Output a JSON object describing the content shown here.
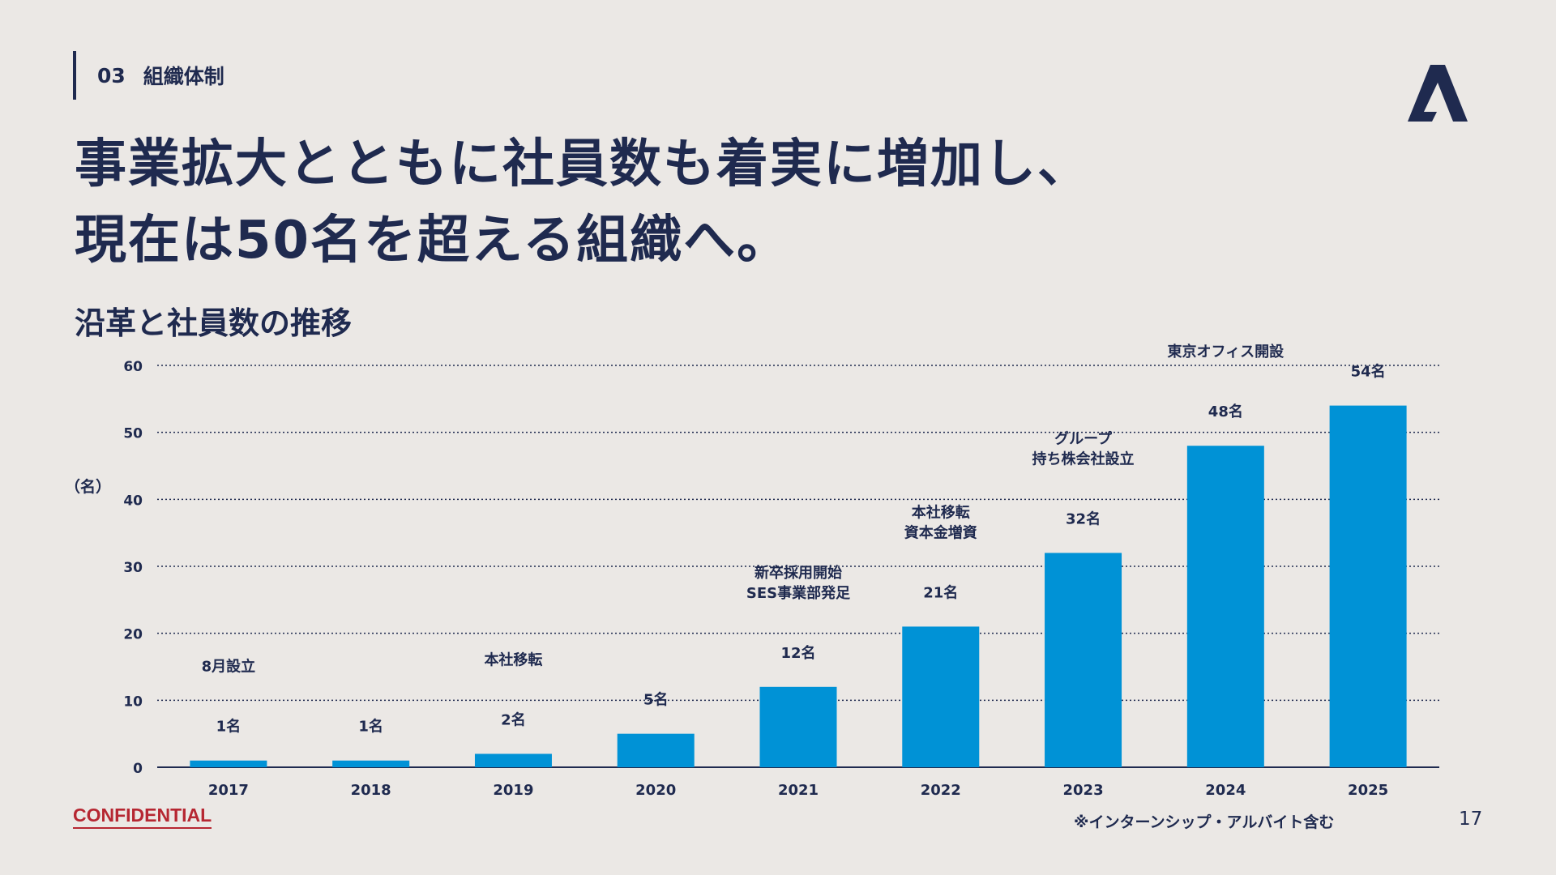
{
  "header": {
    "section_number": "03",
    "section_title": "組織体制"
  },
  "headline": {
    "line1": "事業拡大とともに社員数も着実に増加し、",
    "line2": "現在は50名を超える組織へ。"
  },
  "subhead": "沿革と社員数の推移",
  "colors": {
    "bar": "#0092d6",
    "text": "#1f2a4f",
    "accent_red": "#b62732",
    "background": "#ebe8e5"
  },
  "chart_data": {
    "type": "bar",
    "categories": [
      "2017",
      "2018",
      "2019",
      "2020",
      "2021",
      "2022",
      "2023",
      "2024",
      "2025"
    ],
    "values": [
      1,
      1,
      2,
      5,
      12,
      21,
      32,
      48,
      54
    ],
    "value_labels": [
      "1名",
      "1名",
      "2名",
      "5名",
      "12名",
      "21名",
      "32名",
      "48名",
      "54名"
    ],
    "events": [
      [
        "8月設立"
      ],
      [],
      [
        "本社移転"
      ],
      [],
      [
        "新卒採用開始",
        "SES事業部発足"
      ],
      [
        "本社移転",
        "資本金増資"
      ],
      [
        "グループ",
        "持ち株会社設立"
      ],
      [
        "東京オフィス開設"
      ],
      []
    ],
    "ylabel": "（名）",
    "yticks": [
      0,
      10,
      20,
      30,
      40,
      50,
      60
    ],
    "ylim": [
      0,
      60
    ],
    "grid": true
  },
  "footer": {
    "confidential": "CONFIDENTIAL",
    "footnote": "※インターンシップ・アルバイト含む",
    "page_number": "17"
  }
}
